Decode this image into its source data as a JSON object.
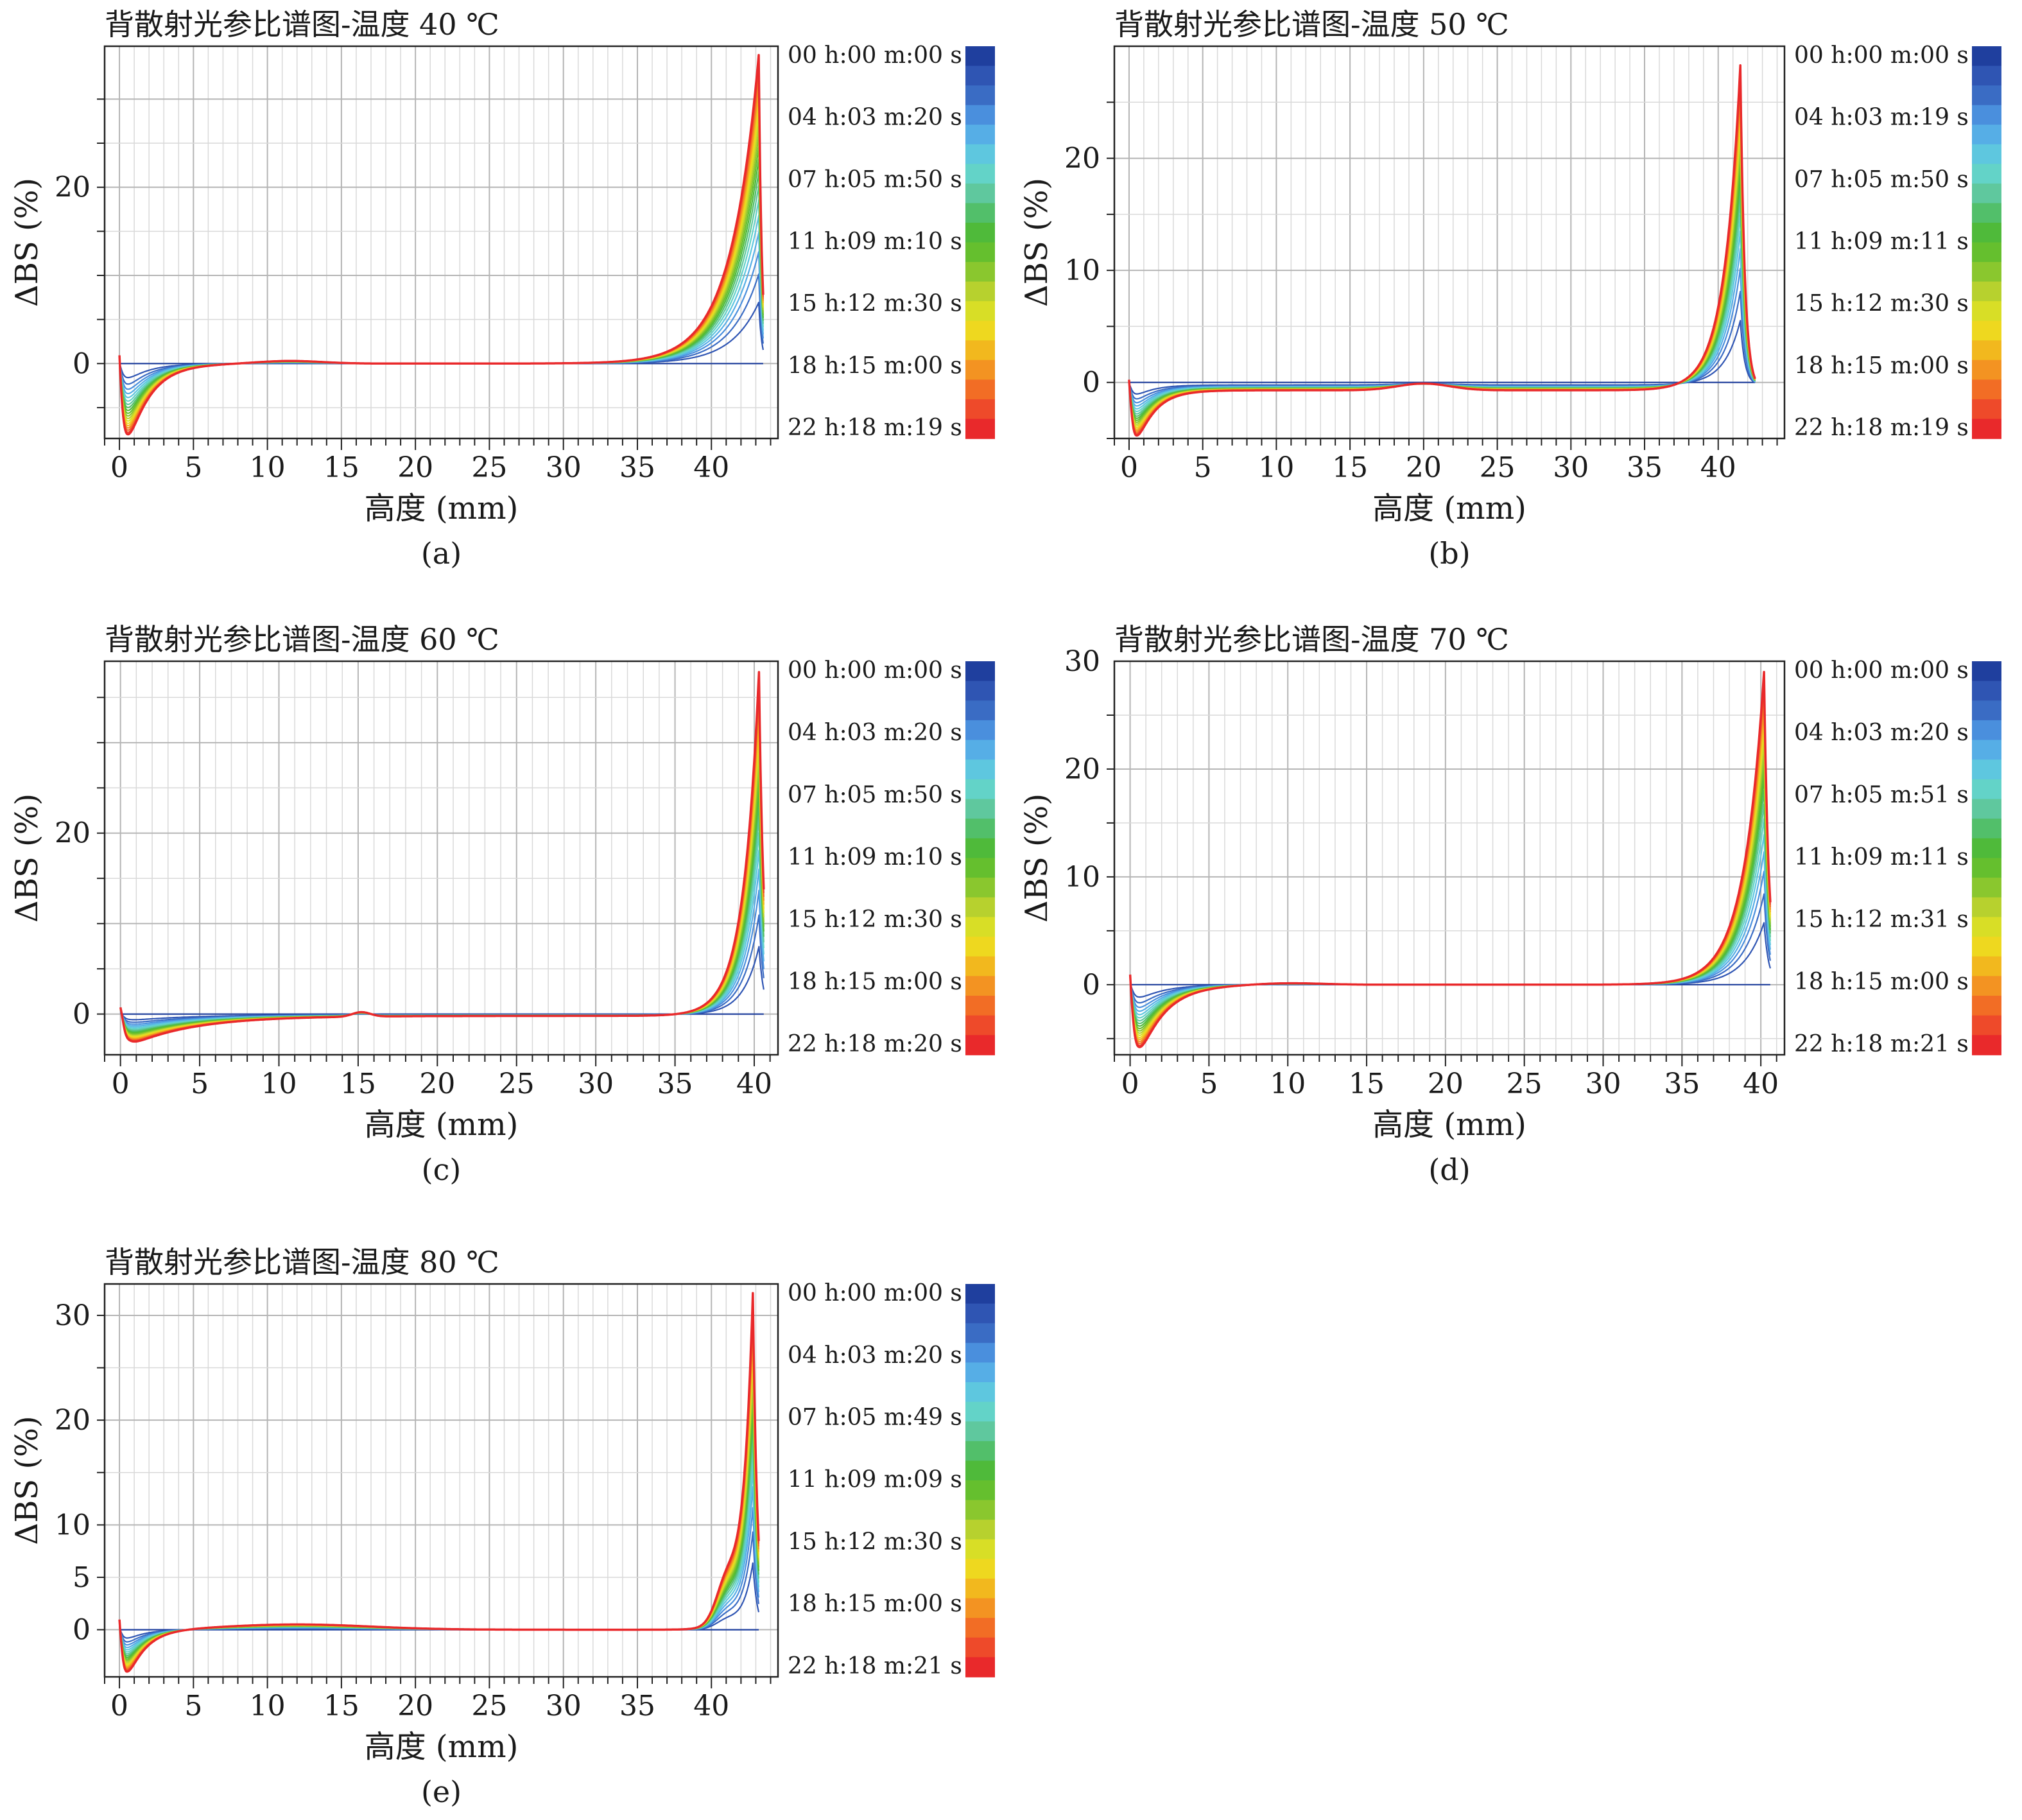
{
  "chart_data": [
    {
      "id": "a",
      "type": "line",
      "title": "背散射光参比谱图-温度 40 ℃",
      "panel_label": "(a)",
      "xlabel": "高度 (mm)",
      "ylabel": "ΔBS (%)",
      "xlim": [
        -1,
        44.5
      ],
      "ylim": [
        -8.5,
        36
      ],
      "xticks": [
        0,
        5,
        10,
        15,
        20,
        25,
        30,
        35,
        40
      ],
      "yticks": [
        0,
        20
      ],
      "ygrid": [
        -5,
        0,
        5,
        10,
        15,
        20,
        25,
        30
      ],
      "grid": true,
      "legend_position": "right",
      "time_labels": [
        "00 h:00 m:00 s",
        "04 h:03 m:20 s",
        "07 h:05 m:50 s",
        "11 h:09 m:10 s",
        "15 h:12 m:30 s",
        "18 h:15 m:00 s",
        "22 h:18 m:19 s"
      ],
      "profile": {
        "dip_depth": -7.5,
        "dip_x": 1.0,
        "dip_width": 1.5,
        "bump_height": 0.3,
        "bump_center": 11.5,
        "bump_width": 3,
        "offset": 0,
        "peak_height": 35,
        "peak_x": 43.2,
        "peak_rise": 1.9,
        "peak_fall": 0.2,
        "x_end": 43.5
      }
    },
    {
      "id": "b",
      "type": "line",
      "title": "背散射光参比谱图-温度 50 ℃",
      "panel_label": "(b)",
      "xlabel": "高度 (mm)",
      "ylabel": "ΔBS (%)",
      "xlim": [
        -1,
        44.5
      ],
      "ylim": [
        -5,
        30
      ],
      "xticks": [
        0,
        5,
        10,
        15,
        20,
        25,
        30,
        35,
        40
      ],
      "yticks": [
        0,
        10,
        20
      ],
      "ygrid": [
        -5,
        0,
        5,
        10,
        15,
        20,
        25
      ],
      "grid": true,
      "legend_position": "right",
      "time_labels": [
        "00 h:00 m:00 s",
        "04 h:03 m:19 s",
        "07 h:05 m:50 s",
        "11 h:09 m:11 s",
        "15 h:12 m:30 s",
        "18 h:15 m:00 s",
        "22 h:18 m:19 s"
      ],
      "profile": {
        "dip_depth": -3.5,
        "dip_x": 1.0,
        "dip_width": 1.2,
        "bump_height": 0.6,
        "bump_center": 20,
        "bump_width": 2.5,
        "offset": -0.7,
        "peak_height": 29,
        "peak_x": 41.5,
        "peak_rise": 1.1,
        "peak_fall": 0.3,
        "x_end": 42.5
      }
    },
    {
      "id": "c",
      "type": "line",
      "title": "背散射光参比谱图-温度 60 ℃",
      "panel_label": "(c)",
      "xlabel": "高度 (mm)",
      "ylabel": "ΔBS (%)",
      "xlim": [
        -1,
        41.5
      ],
      "ylim": [
        -4.5,
        39
      ],
      "xticks": [
        0,
        5,
        10,
        15,
        20,
        25,
        30,
        35,
        40
      ],
      "yticks": [
        0,
        20
      ],
      "ygrid": [
        -5,
        0,
        5,
        10,
        15,
        20,
        25,
        30,
        35
      ],
      "grid": true,
      "legend_position": "right",
      "time_labels": [
        "00 h:00 m:00 s",
        "04 h:03 m:20 s",
        "07 h:05 m:50 s",
        "11 h:09 m:10 s",
        "15 h:12 m:30 s",
        "18 h:15 m:00 s",
        "22 h:18 m:20 s"
      ],
      "profile": {
        "dip_depth": -3.0,
        "dip_x": 1.0,
        "dip_width": 4,
        "bump_height": 0.5,
        "bump_center": 15.2,
        "bump_width": 0.8,
        "offset": -0.2,
        "peak_height": 38,
        "peak_x": 40.3,
        "peak_rise": 1.0,
        "peak_fall": 0.3,
        "x_end": 40.6
      }
    },
    {
      "id": "d",
      "type": "line",
      "title": "背散射光参比谱图-温度 70 ℃",
      "panel_label": "(d)",
      "xlabel": "高度 (mm)",
      "ylabel": "ΔBS (%)",
      "xlim": [
        -1,
        41.5
      ],
      "ylim": [
        -6.5,
        30
      ],
      "xticks": [
        0,
        5,
        10,
        15,
        20,
        25,
        30,
        35,
        40
      ],
      "yticks": [
        0,
        10,
        20,
        30
      ],
      "ygrid": [
        -5,
        0,
        5,
        10,
        15,
        20,
        25
      ],
      "grid": true,
      "legend_position": "right",
      "time_labels": [
        "00 h:00 m:00 s",
        "04 h:03 m:20 s",
        "07 h:05 m:51 s",
        "11 h:09 m:11 s",
        "15 h:12 m:31 s",
        "18 h:15 m:00 s",
        "22 h:18 m:21 s"
      ],
      "profile": {
        "dip_depth": -5.5,
        "dip_x": 1.0,
        "dip_width": 1.6,
        "bump_height": 0.15,
        "bump_center": 10,
        "bump_width": 3,
        "offset": 0,
        "peak_height": 29,
        "peak_x": 40.2,
        "peak_rise": 1.3,
        "peak_fall": 0.3,
        "x_end": 40.6
      }
    },
    {
      "id": "e",
      "type": "line",
      "title": "背散射光参比谱图-温度 80 ℃",
      "panel_label": "(e)",
      "xlabel": "高度 (mm)",
      "ylabel": "ΔBS (%)",
      "xlim": [
        -1,
        44.5
      ],
      "ylim": [
        -4.5,
        33
      ],
      "xticks": [
        0,
        5,
        10,
        15,
        20,
        25,
        30,
        35,
        40
      ],
      "yticks": [
        0,
        5,
        10,
        20,
        30
      ],
      "ygrid": [
        -5,
        0,
        5,
        10,
        15,
        20,
        25,
        30
      ],
      "grid": true,
      "legend_position": "right",
      "time_labels": [
        "00 h:00 m:00 s",
        "04 h:03 m:20 s",
        "07 h:05 m:49 s",
        "11 h:09 m:09 s",
        "15 h:12 m:30 s",
        "18 h:15 m:00 s",
        "22 h:18 m:21 s"
      ],
      "profile": {
        "dip_depth": -3.5,
        "dip_x": 1.0,
        "dip_width": 1.2,
        "bump_height": 0.5,
        "bump_center": 12,
        "bump_width": 7,
        "offset": 0,
        "peak_height": 32,
        "peak_x": 42.8,
        "peak_rise": 0.7,
        "peak_fall": 0.3,
        "x_end": 43.2,
        "shoulder_height": 3.3,
        "shoulder_x": 41.0,
        "shoulder_width": 1.0
      }
    }
  ],
  "colorbar": {
    "colors": [
      "#1f3f9e",
      "#2f55b3",
      "#3a6cc4",
      "#4a8fdd",
      "#56aee6",
      "#5ec7df",
      "#63d3c8",
      "#5fc89e",
      "#52bf6a",
      "#4fba3a",
      "#65bf2e",
      "#8ac72e",
      "#b7d12e",
      "#d8de26",
      "#eed81f",
      "#f2b81e",
      "#f39322",
      "#f26d25",
      "#ee4a2a",
      "#e9292b"
    ]
  }
}
